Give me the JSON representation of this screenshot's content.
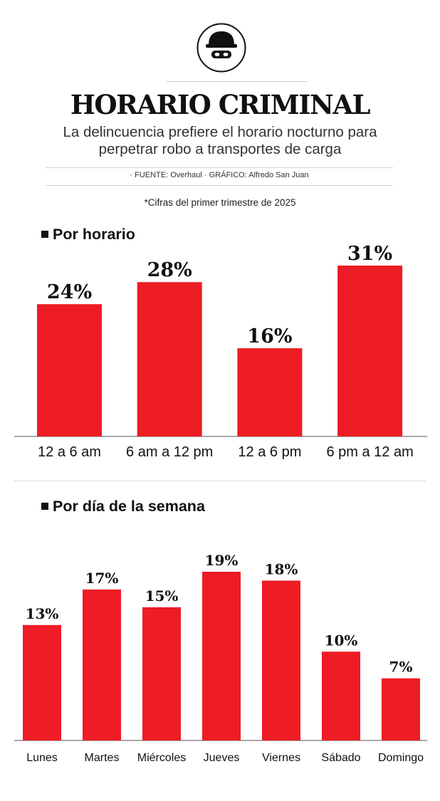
{
  "header": {
    "logo_icon": "masked-thief-icon",
    "title": "HORARIO CRIMINAL",
    "subtitle_line1": "La delincuencia prefiere el horario nocturno para",
    "subtitle_line2": "perpetrar robo a transportes de carga",
    "credit": "· FUENTE: Overhaul · GRÁFICO: Alfredo San Juan",
    "note": "*Cifras del primer trimestre de 2025"
  },
  "colors": {
    "bar": "#ee1c25",
    "axis": "#555555",
    "text": "#111111"
  },
  "chart_data": [
    {
      "type": "bar",
      "title": "Por horario",
      "categories": [
        "12 a 6 am",
        "6 am a 12 pm",
        "12 a 6 pm",
        "6 pm a 12 am"
      ],
      "values": [
        24,
        28,
        16,
        31
      ],
      "labels": [
        "24%",
        "28%",
        "16%",
        "31%"
      ],
      "unit": "%",
      "ylim": [
        0,
        31
      ]
    },
    {
      "type": "bar",
      "title": "Por día de la semana",
      "categories": [
        "Lunes",
        "Martes",
        "Miércoles",
        "Jueves",
        "Viernes",
        "Sábado",
        "Domingo"
      ],
      "values": [
        13,
        17,
        15,
        19,
        18,
        10,
        7
      ],
      "labels": [
        "13%",
        "17%",
        "15%",
        "19%",
        "18%",
        "10%",
        "7%"
      ],
      "unit": "%",
      "ylim": [
        0,
        19
      ]
    }
  ]
}
